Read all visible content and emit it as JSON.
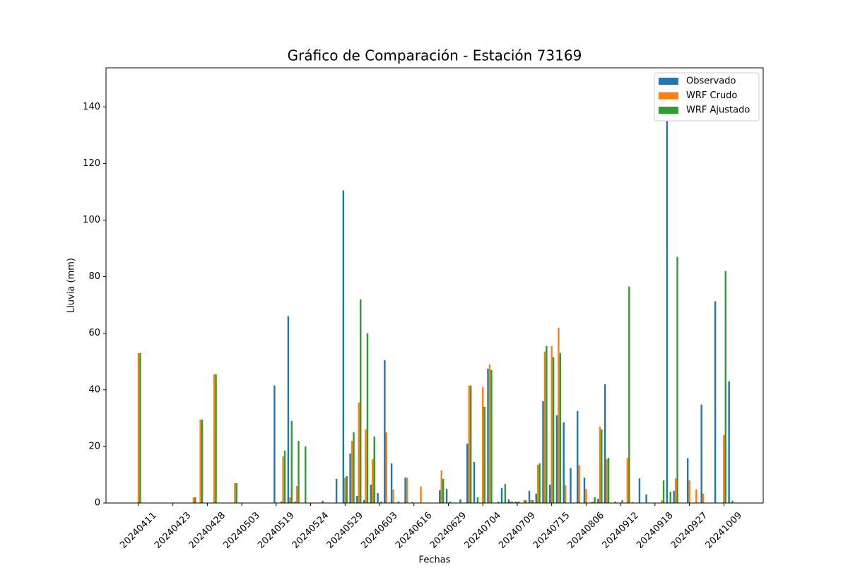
{
  "chart_data": {
    "type": "bar",
    "title": "Gráfico de Comparación - Estación 73169",
    "x_label": "Fechas",
    "y_label": "Lluvia (mm)",
    "categories": [
      "20240411",
      null,
      null,
      null,
      null,
      "20240423",
      null,
      null,
      null,
      null,
      "20240428",
      null,
      null,
      null,
      null,
      "20240503",
      null,
      null,
      null,
      null,
      "20240519",
      null,
      null,
      null,
      null,
      "20240524",
      null,
      null,
      null,
      null,
      "20240529",
      null,
      null,
      null,
      null,
      "20240603",
      null,
      null,
      null,
      null,
      "20240616",
      null,
      null,
      null,
      null,
      "20240629",
      null,
      null,
      null,
      null,
      "20240704",
      null,
      null,
      null,
      null,
      "20240709",
      null,
      null,
      null,
      null,
      "20240715",
      null,
      null,
      null,
      null,
      "20240806",
      null,
      null,
      null,
      null,
      "20240912",
      null,
      null,
      null,
      null,
      "20240918",
      null,
      null,
      null,
      null,
      "20240927",
      null,
      null,
      null,
      null,
      "20241009",
      null
    ],
    "series": [
      {
        "name": "Observado",
        "color": "#1f77b4",
        "values": [
          0,
          0,
          0,
          0,
          0,
          0,
          0,
          0,
          0,
          0,
          0,
          0,
          0,
          0,
          0,
          0,
          0,
          0,
          0,
          0,
          41.5,
          0.5,
          66,
          0.5,
          0,
          0,
          0,
          0.8,
          0,
          8.5,
          110.5,
          17.5,
          2.5,
          1,
          6.5,
          3.5,
          50.5,
          14,
          0.5,
          9,
          0.3,
          0,
          0,
          0,
          4.5,
          5,
          0,
          1.3,
          21,
          14.5,
          0,
          47.5,
          0,
          5.3,
          1.3,
          0.5,
          0,
          4.3,
          3.3,
          36,
          6.5,
          31,
          28.5,
          12.3,
          32.5,
          9,
          0.3,
          1.5,
          42,
          0,
          0,
          0,
          0.3,
          8.7,
          3,
          0,
          0,
          146.5,
          4.3,
          0,
          15.8,
          0,
          34.8,
          0,
          71.3,
          0,
          43
        ]
      },
      {
        "name": "WRF Crudo",
        "color": "#ff7f0e",
        "values": [
          53,
          0,
          0,
          0,
          0,
          0,
          0,
          0,
          2,
          29.5,
          0,
          45.5,
          0,
          0,
          7,
          0,
          0,
          0,
          0,
          0,
          0,
          16.5,
          2,
          6,
          0,
          0,
          0,
          0,
          0,
          0,
          9,
          22,
          35.5,
          26,
          15.5,
          0,
          25,
          4.8,
          0,
          9,
          0,
          5.8,
          0,
          0,
          11.5,
          0,
          0,
          0,
          41.5,
          0,
          41,
          49,
          0,
          0,
          0.5,
          0.5,
          1,
          1,
          13.5,
          53.5,
          55.5,
          62,
          6.3,
          0,
          13.3,
          5,
          0.5,
          27,
          15.5,
          0,
          0,
          16,
          0,
          0,
          0,
          0,
          1,
          0,
          8.7,
          0,
          8,
          4.8,
          3.3,
          0,
          0,
          24,
          0
        ]
      },
      {
        "name": "WRF Ajustado",
        "color": "#2ca02c",
        "values": [
          53,
          0,
          0,
          0,
          0,
          0,
          0,
          0,
          2,
          29.5,
          0,
          45.5,
          0,
          0,
          7,
          0,
          0,
          0,
          0,
          0,
          0,
          18.5,
          29,
          22,
          20,
          0,
          0,
          0,
          0,
          0,
          9.5,
          25,
          72,
          60,
          23.5,
          0.5,
          0,
          0,
          0,
          0,
          0,
          0,
          0,
          0,
          8.5,
          0.5,
          0,
          0,
          41.5,
          2,
          34,
          47,
          0.5,
          6.7,
          0.5,
          0.5,
          1,
          1,
          14,
          55.5,
          51.5,
          53,
          0,
          0,
          0,
          0,
          2,
          26,
          16,
          0.5,
          1,
          76.5,
          0,
          0,
          0,
          0,
          8,
          4,
          87,
          0,
          0,
          0,
          0,
          0,
          0,
          82,
          0.8
        ]
      }
    ],
    "ylim": [
      0,
      153.8
    ],
    "yticks": [
      0,
      20,
      40,
      60,
      80,
      100,
      120,
      140
    ],
    "legend": "upper right"
  }
}
